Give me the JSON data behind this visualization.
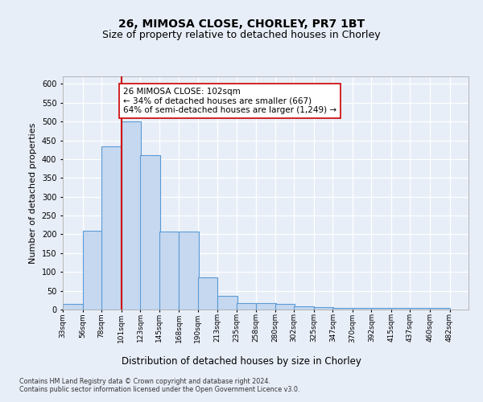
{
  "title1": "26, MIMOSA CLOSE, CHORLEY, PR7 1BT",
  "title2": "Size of property relative to detached houses in Chorley",
  "xlabel": "Distribution of detached houses by size in Chorley",
  "ylabel": "Number of detached properties",
  "bins_left": [
    33,
    56,
    78,
    101,
    123,
    145,
    168,
    190,
    213,
    235,
    258,
    280,
    302,
    325,
    347,
    370,
    392,
    415,
    437,
    460
  ],
  "bin_width": 23,
  "bar_heights": [
    15,
    210,
    435,
    500,
    410,
    208,
    208,
    85,
    37,
    17,
    17,
    15,
    8,
    6,
    5,
    5,
    5,
    5,
    5,
    5
  ],
  "bar_color": "#c5d8f0",
  "bar_edge_color": "#5b9bd5",
  "vline_x": 101,
  "vline_color": "#cc0000",
  "annotation_line1": "26 MIMOSA CLOSE: 102sqm",
  "annotation_line2": "← 34% of detached houses are smaller (667)",
  "annotation_line3": "64% of semi-detached houses are larger (1,249) →",
  "annotation_box_edge_color": "#cc0000",
  "annotation_box_face_color": "white",
  "ylim": [
    0,
    620
  ],
  "yticks": [
    0,
    50,
    100,
    150,
    200,
    250,
    300,
    350,
    400,
    450,
    500,
    550,
    600
  ],
  "xlim_left": 33,
  "xlim_right": 505,
  "footer_text": "Contains HM Land Registry data © Crown copyright and database right 2024.\nContains public sector information licensed under the Open Government Licence v3.0.",
  "bg_color": "#e8eef8",
  "grid_color": "#ffffff",
  "title1_fontsize": 10,
  "title2_fontsize": 9,
  "tick_labels": [
    "33sqm",
    "56sqm",
    "78sqm",
    "101sqm",
    "123sqm",
    "145sqm",
    "168sqm",
    "190sqm",
    "213sqm",
    "235sqm",
    "258sqm",
    "280sqm",
    "302sqm",
    "325sqm",
    "347sqm",
    "370sqm",
    "392sqm",
    "415sqm",
    "437sqm",
    "460sqm",
    "482sqm"
  ]
}
